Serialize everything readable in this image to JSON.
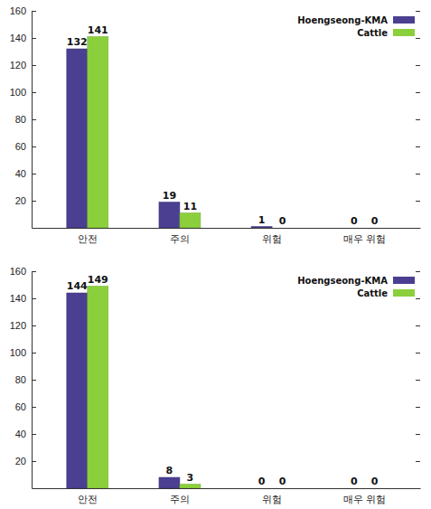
{
  "chart_data": [
    {
      "type": "bar",
      "categories": [
        "안전",
        "주의",
        "위험",
        "매우 위험"
      ],
      "series": [
        {
          "name": "Hoengseong-KMA",
          "color": "#4a3f91",
          "values": [
            132,
            19,
            1,
            0
          ]
        },
        {
          "name": "Cattle",
          "color": "#8bd03c",
          "values": [
            141,
            11,
            0,
            0
          ]
        }
      ],
      "ylim": [
        0,
        160
      ],
      "yticks": [
        20,
        40,
        60,
        80,
        100,
        120,
        140,
        160
      ],
      "legend": "upper right",
      "data_labels": true
    },
    {
      "type": "bar",
      "categories": [
        "안전",
        "주의",
        "위험",
        "매우 위험"
      ],
      "series": [
        {
          "name": "Hoengseong-KMA",
          "color": "#4a3f91",
          "values": [
            144,
            8,
            0,
            0
          ]
        },
        {
          "name": "Cattle",
          "color": "#8bd03c",
          "values": [
            149,
            3,
            0,
            0
          ]
        }
      ],
      "ylim": [
        0,
        160
      ],
      "yticks": [
        20,
        40,
        60,
        80,
        100,
        120,
        140,
        160
      ],
      "legend": "upper right",
      "data_labels": true
    }
  ]
}
